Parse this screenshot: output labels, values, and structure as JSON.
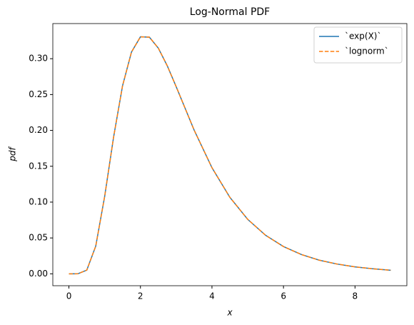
{
  "chart_data": {
    "type": "line",
    "title": "Log-Normal PDF",
    "x_label": "x",
    "y_label": "pdf",
    "x": [
      0,
      0.25,
      0.5,
      0.75,
      1,
      1.25,
      1.5,
      1.75,
      2,
      2.25,
      2.5,
      2.75,
      3,
      3.5,
      4,
      4.5,
      5,
      5.5,
      6,
      6.5,
      7,
      7.5,
      8,
      8.5,
      9
    ],
    "series": [
      {
        "name": "`exp(X)`",
        "color": "#1f77b4",
        "dash": false,
        "values": [
          0,
          3.61e-05,
          0.00517,
          0.0386,
          0.108,
          0.1909,
          0.2623,
          0.3093,
          0.3305,
          0.3301,
          0.3147,
          0.2901,
          0.2609,
          0.2006,
          0.148,
          0.1067,
          0.0759,
          0.0537,
          0.038,
          0.0269,
          0.019,
          0.0136,
          0.0097,
          0.007,
          0.005
        ]
      },
      {
        "name": "`lognorm`",
        "color": "#ff7f0e",
        "dash": true,
        "values": [
          0,
          3.61e-05,
          0.00517,
          0.0386,
          0.108,
          0.1909,
          0.2623,
          0.3093,
          0.3305,
          0.3301,
          0.3147,
          0.2901,
          0.2609,
          0.2006,
          0.148,
          0.1067,
          0.0759,
          0.0537,
          0.038,
          0.0269,
          0.019,
          0.0136,
          0.0097,
          0.007,
          0.005
        ]
      }
    ],
    "xlim": [
      -0.45,
      9.45
    ],
    "xticks": [
      0,
      2,
      4,
      6,
      8
    ],
    "ylim": [
      -0.0166,
      0.349
    ],
    "yticks": [
      {
        "value": 0,
        "label": "0.00"
      },
      {
        "value": 0.05,
        "label": "0.05"
      },
      {
        "value": 0.1,
        "label": "0.10"
      },
      {
        "value": 0.15,
        "label": "0.15"
      },
      {
        "value": 0.2,
        "label": "0.20"
      },
      {
        "value": 0.25,
        "label": "0.25"
      },
      {
        "value": 0.3,
        "label": "0.30"
      }
    ],
    "legend": "upper right",
    "grid": false
  }
}
